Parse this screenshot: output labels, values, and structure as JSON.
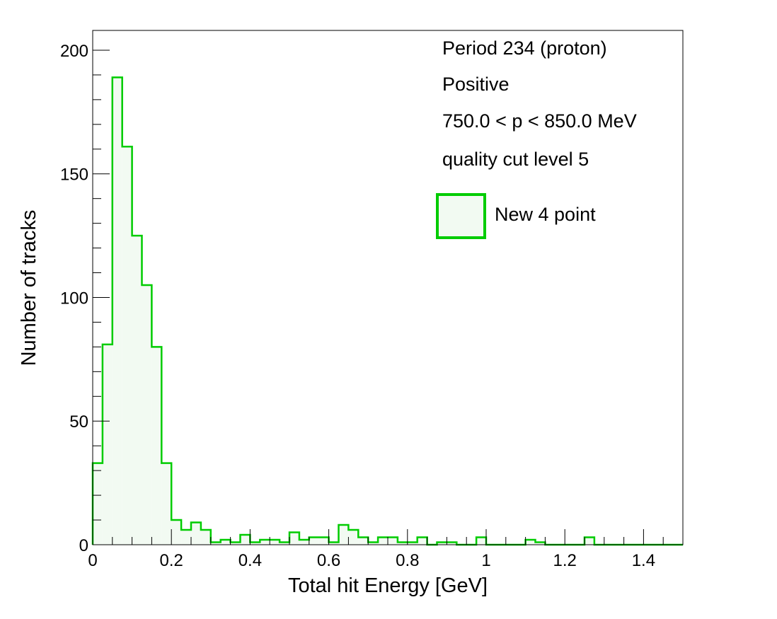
{
  "chart_data": {
    "type": "bar",
    "style": "step-histogram",
    "xlabel": "Total hit Energy [GeV]",
    "ylabel": "Number of tracks",
    "xlim": [
      0,
      1.5
    ],
    "ylim": [
      0,
      208
    ],
    "x_ticks": [
      0,
      0.2,
      0.4,
      0.6,
      0.8,
      1,
      1.2,
      1.4
    ],
    "x_tick_labels": [
      "0",
      "0.2",
      "0.4",
      "0.6",
      "0.8",
      "1",
      "1.2",
      "1.4"
    ],
    "y_ticks": [
      0,
      50,
      100,
      150,
      200
    ],
    "y_tick_labels": [
      "0",
      "50",
      "100",
      "150",
      "200"
    ],
    "bin_width": 0.025,
    "annotations": [
      "Period 234 (proton)",
      "Positive",
      "750.0 < p < 850.0 MeV",
      "quality cut level 5"
    ],
    "legend_position": "top-right",
    "series": [
      {
        "name": "New 4 point",
        "color": "#00cc00",
        "fill": "#f2faf2",
        "values": [
          33,
          81,
          189,
          161,
          125,
          105,
          80,
          33,
          10,
          6,
          9,
          6,
          1,
          2,
          1,
          4,
          1,
          2,
          2,
          1,
          5,
          2,
          3,
          3,
          1,
          8,
          6,
          3,
          1,
          3,
          3,
          1,
          1,
          3,
          0,
          1,
          1,
          0,
          0,
          3,
          0,
          0,
          0,
          0,
          2,
          1,
          0,
          0,
          0,
          0,
          3,
          0,
          0,
          0,
          0,
          0,
          0,
          0,
          0,
          0
        ]
      }
    ]
  }
}
